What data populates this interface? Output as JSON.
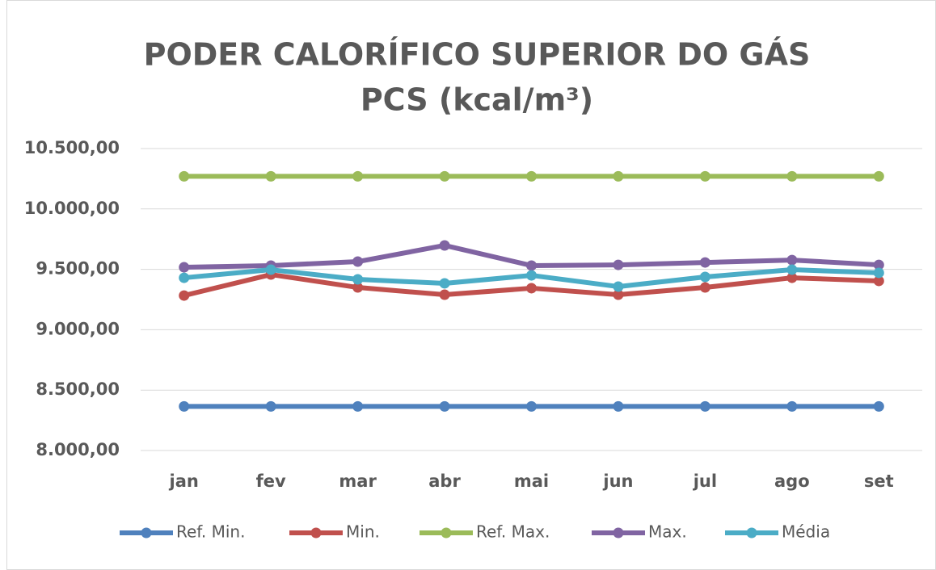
{
  "chart_data": {
    "type": "line",
    "title": "PODER CALORÍFICO SUPERIOR DO GÁS",
    "subtitle": "PCS (kcal/m³)",
    "categories": [
      "jan",
      "fev",
      "mar",
      "abr",
      "mai",
      "jun",
      "jul",
      "ago",
      "set"
    ],
    "series": [
      {
        "name": "Ref. Min.",
        "color": "#4f81bd",
        "values": [
          8365,
          8365,
          8365,
          8365,
          8365,
          8365,
          8365,
          8365,
          8365
        ]
      },
      {
        "name": "Min.",
        "color": "#c0504d",
        "values": [
          9283,
          9457,
          9350,
          9290,
          9344,
          9290,
          9350,
          9430,
          9404
        ]
      },
      {
        "name": "Ref. Max.",
        "color": "#9bbb59",
        "values": [
          10270,
          10270,
          10270,
          10270,
          10270,
          10270,
          10270,
          10270,
          10270
        ]
      },
      {
        "name": "Max.",
        "color": "#8064a2",
        "values": [
          9517,
          9531,
          9564,
          9698,
          9531,
          9537,
          9557,
          9577,
          9537
        ]
      },
      {
        "name": "Média",
        "color": "#4bacc6",
        "values": [
          9430,
          9497,
          9417,
          9384,
          9450,
          9357,
          9437,
          9497,
          9471
        ]
      }
    ],
    "ylim": [
      8000,
      10500
    ],
    "yticks": [
      {
        "value": 8000,
        "label": "8.000,00"
      },
      {
        "value": 8500,
        "label": "8.500,00"
      },
      {
        "value": 9000,
        "label": "9.000,00"
      },
      {
        "value": 9500,
        "label": "9.500,00"
      },
      {
        "value": 10000,
        "label": "10.000,00"
      },
      {
        "value": 10500,
        "label": "10.500,00"
      }
    ],
    "grid": true,
    "legend": "bottom"
  }
}
